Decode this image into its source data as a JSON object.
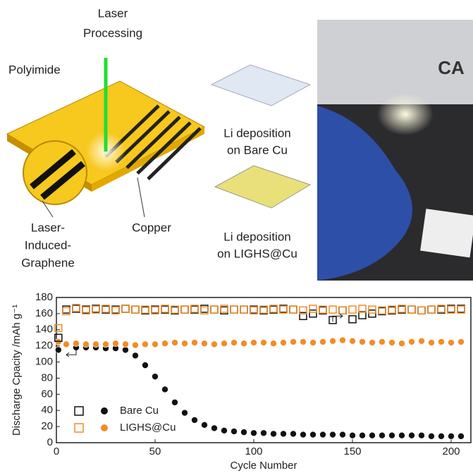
{
  "illustration": {
    "laser": [
      "Laser",
      "Processing"
    ],
    "polyimide": "Polyimide",
    "lig": [
      "Laser-",
      "Induced-",
      "Graphene"
    ],
    "copper": "Copper",
    "bare": [
      "Li deposition",
      "on Bare Cu"
    ],
    "lighs": [
      "Li deposition",
      "on LIGHS@Cu"
    ],
    "photo_text": "CA"
  },
  "chart_data": {
    "type": "scatter",
    "ylabel": "Discharge Cpacity /mAh g⁻¹",
    "xlabel": "Cycle Number",
    "xlim": [
      0,
      210
    ],
    "ylim": [
      0,
      180
    ],
    "xticks": [
      0,
      50,
      100,
      150,
      200
    ],
    "yticks": [
      0,
      20,
      40,
      60,
      80,
      100,
      120,
      140,
      160,
      180
    ],
    "x": [
      1,
      5,
      10,
      15,
      20,
      25,
      30,
      35,
      40,
      45,
      50,
      55,
      60,
      65,
      70,
      75,
      80,
      85,
      90,
      95,
      100,
      105,
      110,
      115,
      120,
      125,
      130,
      135,
      140,
      145,
      150,
      155,
      160,
      165,
      170,
      175,
      180,
      185,
      190,
      195,
      200,
      205
    ],
    "series": [
      {
        "name": "Bare Cu",
        "color": "#111111",
        "marker": "circle",
        "values": [
          115,
          122,
          118,
          118,
          118,
          117,
          117,
          115,
          108,
          96,
          82,
          66,
          50,
          37,
          28,
          22,
          18,
          15,
          14,
          13,
          12,
          12,
          11,
          11,
          11,
          10,
          10,
          10,
          10,
          10,
          9,
          9,
          9,
          9,
          9,
          9,
          9,
          9,
          8,
          8,
          8,
          8
        ]
      },
      {
        "name": "LIGHS@Cu",
        "color": "#f28c28",
        "marker": "circle",
        "values": [
          125,
          122,
          123,
          122,
          122,
          122,
          123,
          122,
          121,
          122,
          122,
          123,
          124,
          123,
          124,
          123,
          122,
          123,
          124,
          123,
          124,
          124,
          123,
          124,
          125,
          125,
          124,
          125,
          126,
          127,
          126,
          125,
          124,
          125,
          124,
          123,
          125,
          126,
          124,
          125,
          124,
          125
        ]
      },
      {
        "name": "Bare Cu",
        "color": "#111111",
        "marker": "square",
        "values": [
          130,
          165,
          166,
          165,
          166,
          165,
          165,
          166,
          165,
          164,
          165,
          165,
          164,
          165,
          165,
          166,
          165,
          164,
          165,
          165,
          165,
          164,
          165,
          166,
          165,
          157,
          160,
          164,
          152,
          164,
          153,
          158,
          160,
          163,
          164,
          165,
          165,
          164,
          165,
          165,
          166,
          166
        ]
      },
      {
        "name": "LIGHS@Cu",
        "color": "#f28c28",
        "marker": "square",
        "values": [
          142,
          163,
          167,
          164,
          165,
          166,
          164,
          166,
          165,
          165,
          164,
          166,
          165,
          165,
          166,
          164,
          165,
          166,
          165,
          165,
          164,
          165,
          166,
          165,
          165,
          164,
          166,
          165,
          165,
          164,
          165,
          166,
          165,
          164,
          165,
          166,
          165,
          164,
          165,
          166,
          165,
          165
        ]
      }
    ]
  }
}
